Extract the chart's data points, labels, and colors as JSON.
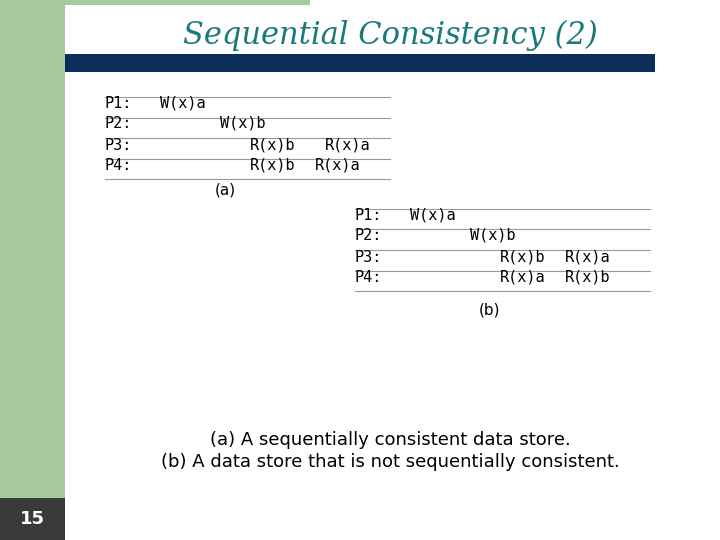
{
  "title": "Sequential Consistency (2)",
  "title_color": "#1a7a7a",
  "title_fontsize": 22,
  "bg_color": "#ffffff",
  "left_panel_color": "#a8c8a0",
  "header_bar_color": "#0d2d5a",
  "slide_number": "15",
  "slide_number_color": "#ffffff",
  "slide_number_bg": "#3a3a3a",
  "table_a": {
    "label": "(a)",
    "rows": [
      {
        "process": "P1:",
        "col1": "W(x)a",
        "col2": "",
        "col3": ""
      },
      {
        "process": "P2:",
        "col1": "",
        "col2": "W(x)b",
        "col3": ""
      },
      {
        "process": "P3:",
        "col1": "",
        "col2": "R(x)b",
        "col3": "R(x)a"
      },
      {
        "process": "P4:",
        "col1": "",
        "col2": "R(x)b",
        "col3": "R(x)a"
      }
    ]
  },
  "table_b": {
    "label": "(b)",
    "rows": [
      {
        "process": "P1:",
        "col1": "W(x)a",
        "col2": "",
        "col3": ""
      },
      {
        "process": "P2:",
        "col1": "",
        "col2": "W(x)b",
        "col3": ""
      },
      {
        "process": "P3:",
        "col1": "",
        "col2": "R(x)b",
        "col3": "R(x)a"
      },
      {
        "process": "P4:",
        "col1": "",
        "col2": "R(x)a",
        "col3": "R(x)b"
      }
    ]
  },
  "caption_line1": "(a) A sequentially consistent data store.",
  "caption_line2": "(b) A data store that is not sequentially consistent.",
  "caption_fontsize": 13
}
